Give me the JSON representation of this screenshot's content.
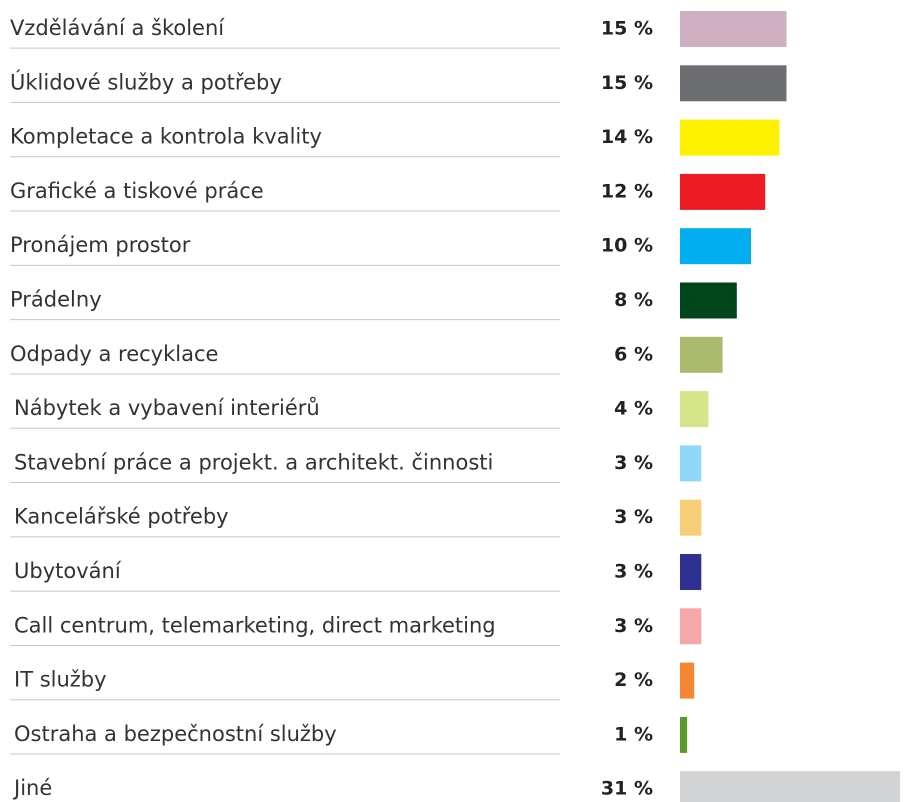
{
  "chart_data": {
    "type": "bar",
    "orientation": "horizontal",
    "categories": [
      "Vzdělávání a školení",
      "Úklidové služby a potřeby",
      "Kompletace a kontrola kvality",
      "Grafické a tiskové práce",
      "Pronájem prostor",
      "Prádelny",
      "Odpady a recyklace",
      "Nábytek a vybavení interiérů",
      "Stavební práce a projekt. a architekt. činnosti",
      "Kancelářské potřeby",
      "Ubytování",
      "Call centrum, telemarketing, direct marketing",
      "IT služby",
      "Ostraha a bezpečnostní služby",
      "Jiné"
    ],
    "values": [
      15,
      15,
      14,
      12,
      10,
      8,
      6,
      4,
      3,
      3,
      3,
      3,
      2,
      1,
      31
    ],
    "value_labels": [
      "15 %",
      "15 %",
      "14 %",
      "12 %",
      "10 %",
      "8 %",
      "6 %",
      "4 %",
      "3 %",
      "3 %",
      "3 %",
      "3 %",
      "2 %",
      "1 %",
      "31 %"
    ],
    "colors": [
      "#cfb0c0",
      "#6d6e71",
      "#fff200",
      "#ed1c24",
      "#00aeef",
      "#00441b",
      "#abbb6d",
      "#d5e589",
      "#8fd8f8",
      "#f7cf78",
      "#2e3192",
      "#f6a8a9",
      "#f58634",
      "#5a9a2d",
      "#d1d3d4"
    ]
  }
}
